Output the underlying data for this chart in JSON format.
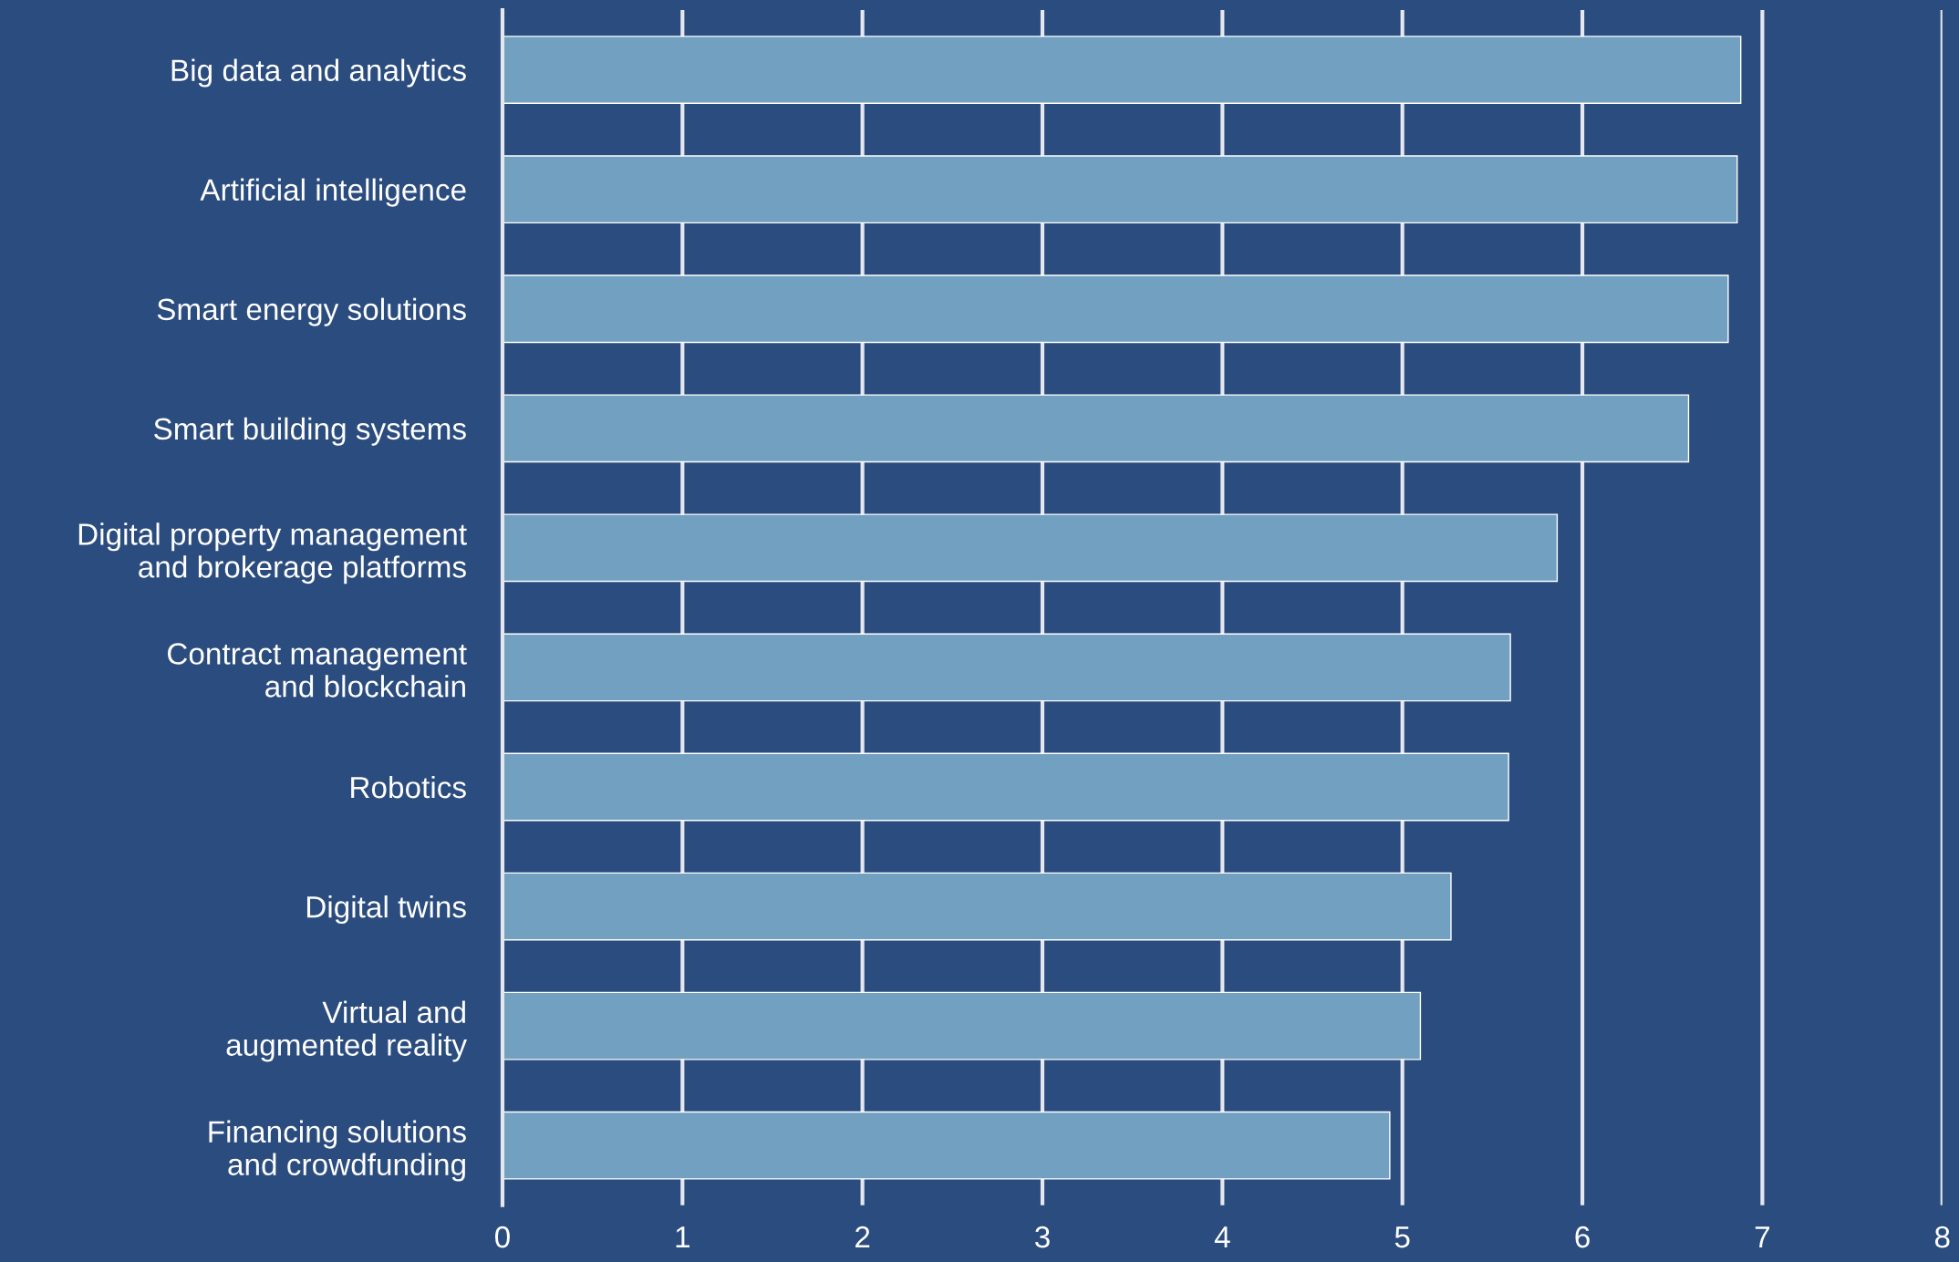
{
  "chart_data": {
    "type": "bar",
    "orientation": "horizontal",
    "categories": [
      "Big data and analytics",
      "Artificial intelligence",
      "Smart energy solutions",
      "Smart building systems",
      "Digital property management\nand brokerage platforms",
      "Contract management\nand blockchain",
      "Robotics",
      "Digital twins",
      "Virtual and\naugmented reality",
      "Financing solutions\nand crowdfunding"
    ],
    "values": [
      6.88,
      6.86,
      6.81,
      6.59,
      5.86,
      5.6,
      5.59,
      5.27,
      5.1,
      4.93
    ],
    "color": "#72a0c1",
    "xlim": [
      0,
      8
    ],
    "xticks": [
      0,
      1,
      2,
      3,
      4,
      5,
      6,
      7,
      8
    ],
    "grid": "x"
  }
}
